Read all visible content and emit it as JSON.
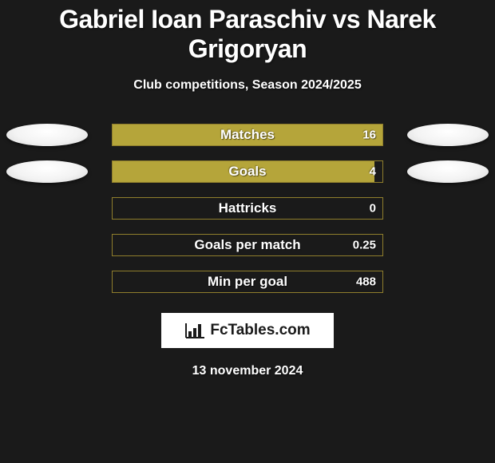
{
  "title": "Gabriel Ioan Paraschiv vs Narek Grigoryan",
  "subtitle": "Club competitions, Season 2024/2025",
  "date_text": "13 november 2024",
  "logo_text": "FcTables.com",
  "bar_border_color": "#8f7e2c",
  "bar_fill_color": "#b5a53a",
  "rows": [
    {
      "label": "Matches",
      "value": "16",
      "fill_pct": 100,
      "left_oval": true,
      "right_oval": true
    },
    {
      "label": "Goals",
      "value": "4",
      "fill_pct": 97,
      "left_oval": true,
      "right_oval": true
    },
    {
      "label": "Hattricks",
      "value": "0",
      "fill_pct": 0,
      "left_oval": false,
      "right_oval": false
    },
    {
      "label": "Goals per match",
      "value": "0.25",
      "fill_pct": 0,
      "left_oval": false,
      "right_oval": false
    },
    {
      "label": "Min per goal",
      "value": "488",
      "fill_pct": 0,
      "left_oval": false,
      "right_oval": false
    }
  ]
}
